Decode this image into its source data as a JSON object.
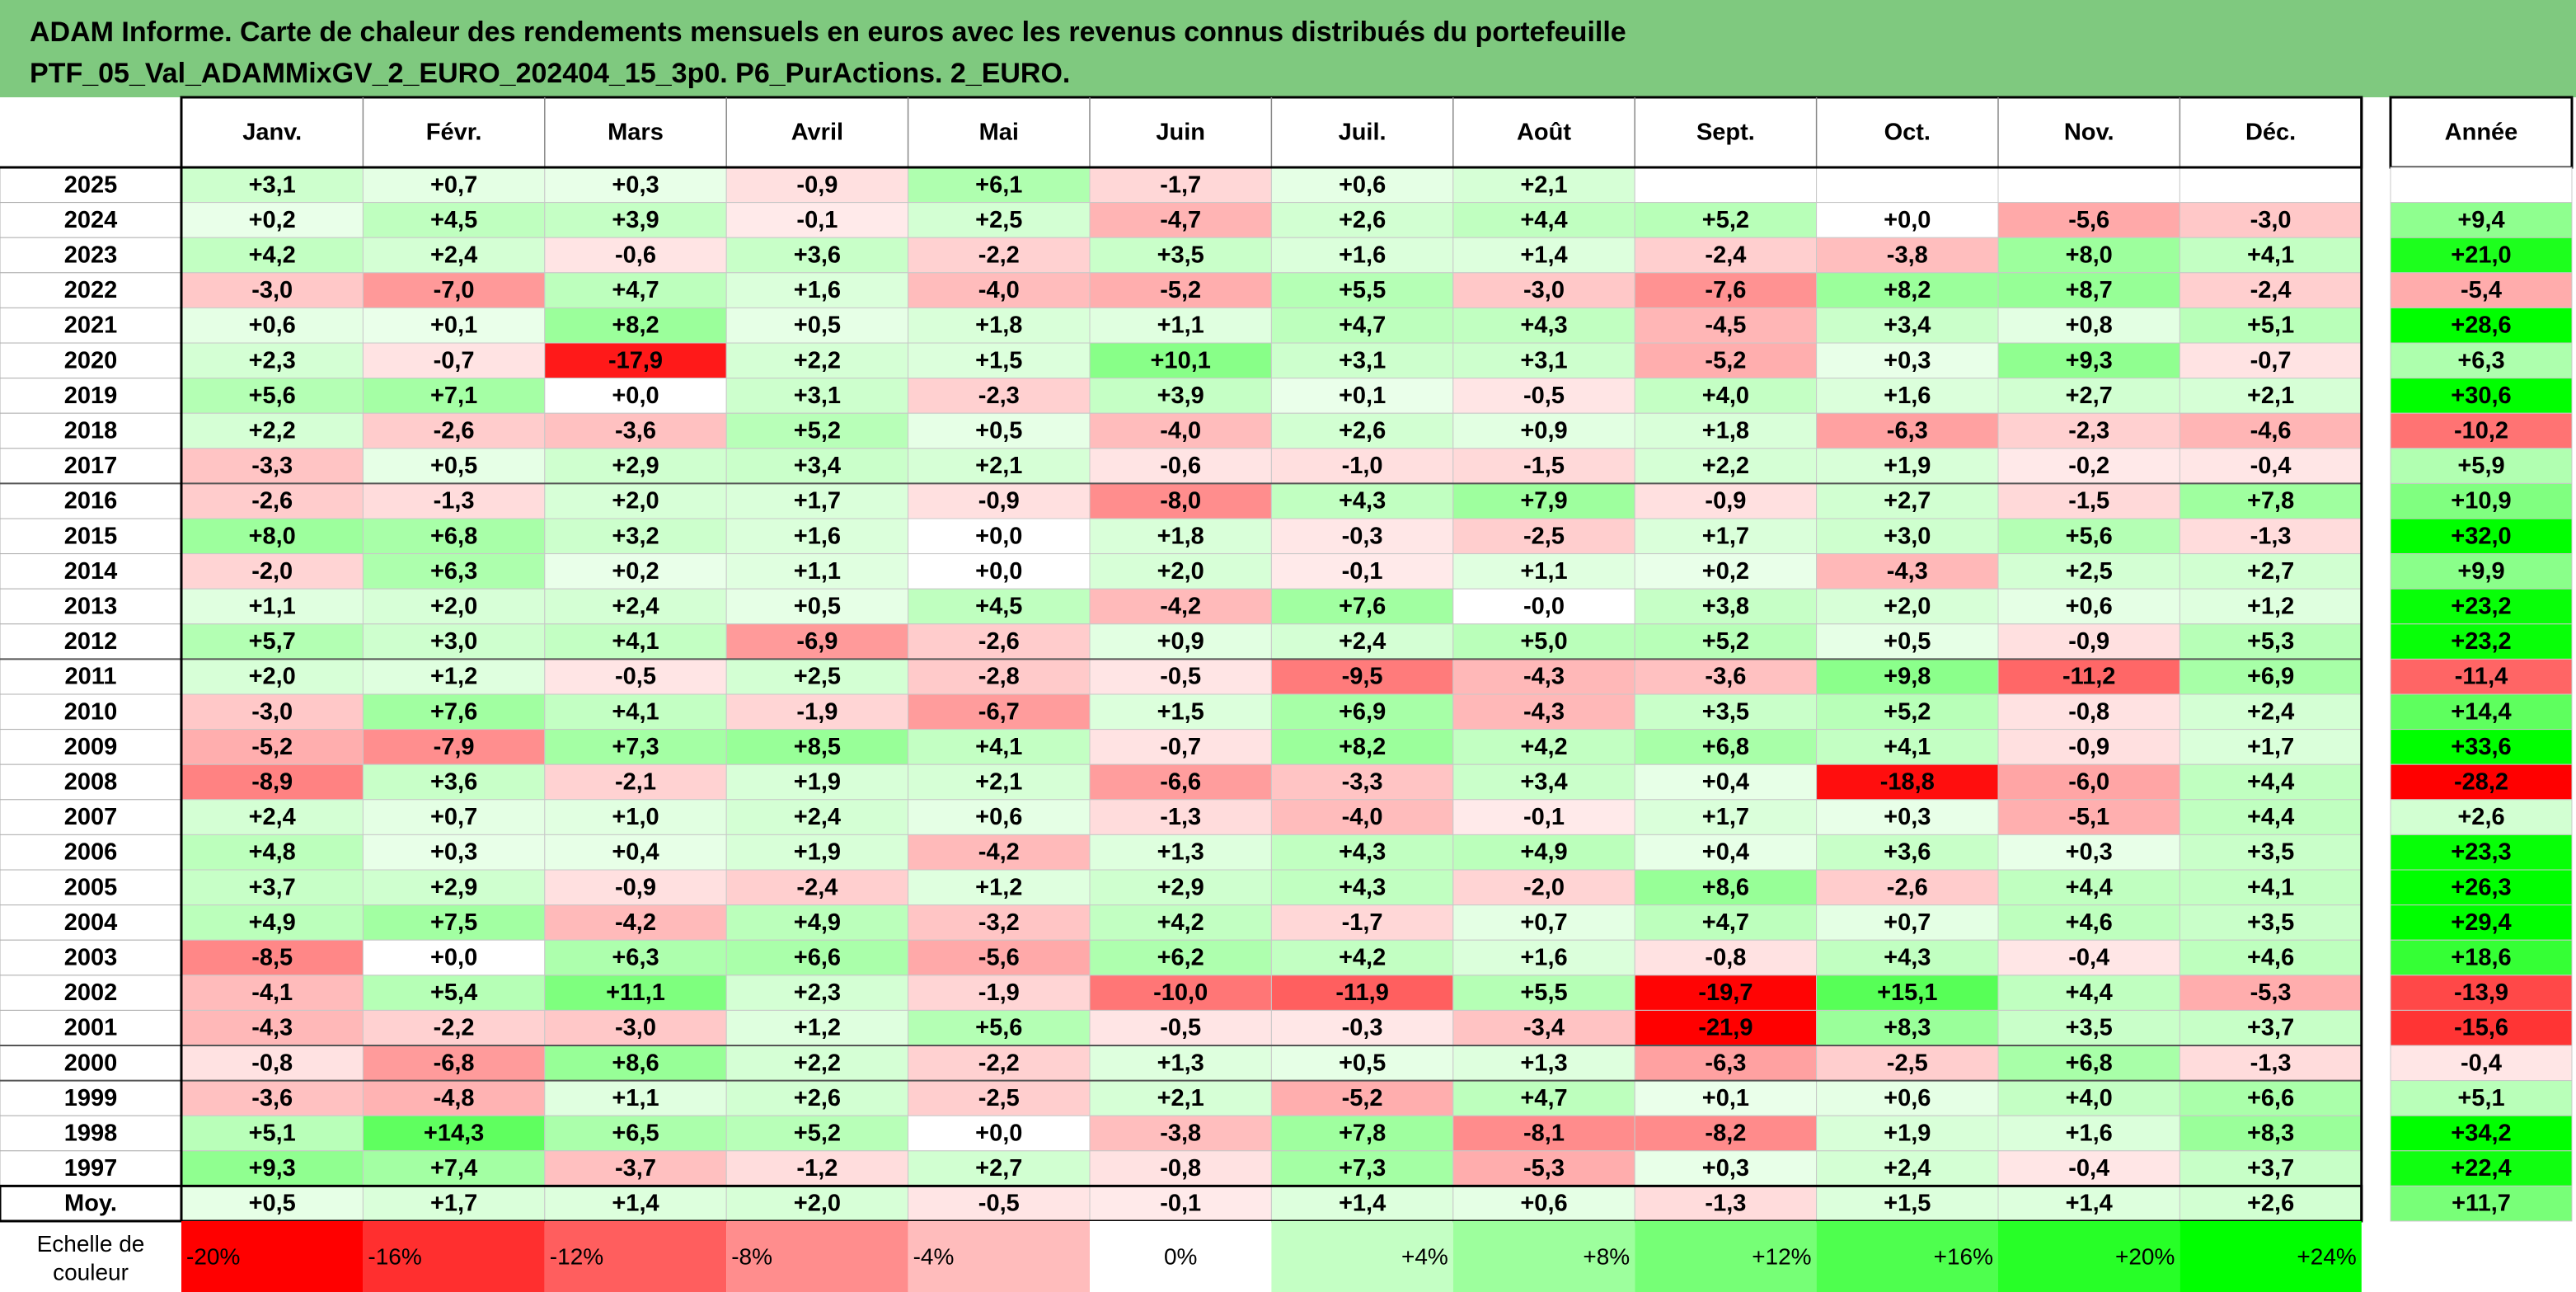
{
  "title_lines": [
    "ADAM Informe. Carte de chaleur des rendements mensuels en euros avec les revenus connus distribués du portefeuille",
    "PTF_05_Val_ADAMMixGV_2_EURO_202404_15_3p0. P6_PurActions. 2_EURO."
  ],
  "chart_data": {
    "type": "heatmap",
    "months": [
      "Janv.",
      "Févr.",
      "Mars",
      "Avril",
      "Mai",
      "Juin",
      "Juil.",
      "Août",
      "Sept.",
      "Oct.",
      "Nov.",
      "Déc."
    ],
    "year_column_label": "Année",
    "rows": [
      {
        "year": "2025",
        "values": [
          3.1,
          0.7,
          0.3,
          -0.9,
          6.1,
          -1.7,
          0.6,
          2.1,
          null,
          null,
          null,
          null
        ],
        "annual": null
      },
      {
        "year": "2024",
        "values": [
          0.2,
          4.5,
          3.9,
          -0.1,
          2.5,
          -4.7,
          2.6,
          4.4,
          5.2,
          0.0,
          -5.6,
          -3.0
        ],
        "annual": 9.4
      },
      {
        "year": "2023",
        "values": [
          4.2,
          2.4,
          -0.6,
          3.6,
          -2.2,
          3.5,
          1.6,
          1.4,
          -2.4,
          -3.8,
          8.0,
          4.1
        ],
        "annual": 21.0
      },
      {
        "year": "2022",
        "values": [
          -3.0,
          -7.0,
          4.7,
          1.6,
          -4.0,
          -5.2,
          5.5,
          -3.0,
          -7.6,
          8.2,
          8.7,
          -2.4
        ],
        "annual": -5.4
      },
      {
        "year": "2021",
        "values": [
          0.6,
          0.1,
          8.2,
          0.5,
          1.8,
          1.1,
          4.7,
          4.3,
          -4.5,
          3.4,
          0.8,
          5.1
        ],
        "annual": 28.6
      },
      {
        "year": "2020",
        "values": [
          2.3,
          -0.7,
          -17.9,
          2.2,
          1.5,
          10.1,
          3.1,
          3.1,
          -5.2,
          0.3,
          9.3,
          -0.7
        ],
        "annual": 6.3
      },
      {
        "year": "2019",
        "values": [
          5.6,
          7.1,
          0.0,
          3.1,
          -2.3,
          3.9,
          0.1,
          -0.5,
          4.0,
          1.6,
          2.7,
          2.1
        ],
        "annual": 30.6
      },
      {
        "year": "2018",
        "values": [
          2.2,
          -2.6,
          -3.6,
          5.2,
          0.5,
          -4.0,
          2.6,
          0.9,
          1.8,
          -6.3,
          -2.3,
          -4.6
        ],
        "annual": -10.2
      },
      {
        "year": "2017",
        "values": [
          -3.3,
          0.5,
          2.9,
          3.4,
          2.1,
          -0.6,
          -1.0,
          -1.5,
          2.2,
          1.9,
          -0.2,
          -0.4
        ],
        "annual": 5.9
      },
      {
        "year": "2016",
        "values": [
          -2.6,
          -1.3,
          2.0,
          1.7,
          -0.9,
          -8.0,
          4.3,
          7.9,
          -0.9,
          2.7,
          -1.5,
          7.8
        ],
        "annual": 10.9
      },
      {
        "year": "2015",
        "values": [
          8.0,
          6.8,
          3.2,
          1.6,
          0.0,
          1.8,
          -0.3,
          -2.5,
          1.7,
          3.0,
          5.6,
          -1.3
        ],
        "annual": 32.0
      },
      {
        "year": "2014",
        "values": [
          -2.0,
          6.3,
          0.2,
          1.1,
          0.0,
          2.0,
          -0.1,
          1.1,
          0.2,
          -4.3,
          2.5,
          2.7
        ],
        "annual": 9.9
      },
      {
        "year": "2013",
        "values": [
          1.1,
          2.0,
          2.4,
          0.5,
          4.5,
          -4.2,
          7.6,
          -0.0,
          3.8,
          2.0,
          0.6,
          1.2
        ],
        "annual": 23.2
      },
      {
        "year": "2012",
        "values": [
          5.7,
          3.0,
          4.1,
          -6.9,
          -2.6,
          0.9,
          2.4,
          5.0,
          5.2,
          0.5,
          -0.9,
          5.3
        ],
        "annual": 23.2
      },
      {
        "year": "2011",
        "values": [
          2.0,
          1.2,
          -0.5,
          2.5,
          -2.8,
          -0.5,
          -9.5,
          -4.3,
          -3.6,
          9.8,
          -11.2,
          6.9
        ],
        "annual": -11.4
      },
      {
        "year": "2010",
        "values": [
          -3.0,
          7.6,
          4.1,
          -1.9,
          -6.7,
          1.5,
          6.9,
          -4.3,
          3.5,
          5.2,
          -0.8,
          2.4
        ],
        "annual": 14.4
      },
      {
        "year": "2009",
        "values": [
          -5.2,
          -7.9,
          7.3,
          8.5,
          4.1,
          -0.7,
          8.2,
          4.2,
          6.8,
          4.1,
          -0.9,
          1.7
        ],
        "annual": 33.6
      },
      {
        "year": "2008",
        "values": [
          -8.9,
          3.6,
          -2.1,
          1.9,
          2.1,
          -6.6,
          -3.3,
          3.4,
          0.4,
          -18.8,
          -6.0,
          4.4
        ],
        "annual": -28.2
      },
      {
        "year": "2007",
        "values": [
          2.4,
          0.7,
          1.0,
          2.4,
          0.6,
          -1.3,
          -4.0,
          -0.1,
          1.7,
          0.3,
          -5.1,
          4.4
        ],
        "annual": 2.6
      },
      {
        "year": "2006",
        "values": [
          4.8,
          0.3,
          0.4,
          1.9,
          -4.2,
          1.3,
          4.3,
          4.9,
          0.4,
          3.6,
          0.3,
          3.5
        ],
        "annual": 23.3
      },
      {
        "year": "2005",
        "values": [
          3.7,
          2.9,
          -0.9,
          -2.4,
          1.2,
          2.9,
          4.3,
          -2.0,
          8.6,
          -2.6,
          4.4,
          4.1
        ],
        "annual": 26.3
      },
      {
        "year": "2004",
        "values": [
          4.9,
          7.5,
          -4.2,
          4.9,
          -3.2,
          4.2,
          -1.7,
          0.7,
          4.7,
          0.7,
          4.6,
          3.5
        ],
        "annual": 29.4
      },
      {
        "year": "2003",
        "values": [
          -8.5,
          0.0,
          6.3,
          6.6,
          -5.6,
          6.2,
          4.2,
          1.6,
          -0.8,
          4.3,
          -0.4,
          4.6
        ],
        "annual": 18.6
      },
      {
        "year": "2002",
        "values": [
          -4.1,
          5.4,
          11.1,
          2.3,
          -1.9,
          -10.0,
          -11.9,
          5.5,
          -19.7,
          15.1,
          4.4,
          -5.3
        ],
        "annual": -13.9
      },
      {
        "year": "2001",
        "values": [
          -4.3,
          -2.2,
          -3.0,
          1.2,
          5.6,
          -0.5,
          -0.3,
          -3.4,
          -21.9,
          8.3,
          3.5,
          3.7
        ],
        "annual": -15.6
      },
      {
        "year": "2000",
        "values": [
          -0.8,
          -6.8,
          8.6,
          2.2,
          -2.2,
          1.3,
          0.5,
          1.3,
          -6.3,
          -2.5,
          6.8,
          -1.3
        ],
        "annual": -0.4
      },
      {
        "year": "1999",
        "values": [
          -3.6,
          -4.8,
          1.1,
          2.6,
          -2.5,
          2.1,
          -5.2,
          4.7,
          0.1,
          0.6,
          4.0,
          6.6
        ],
        "annual": 5.1
      },
      {
        "year": "1998",
        "values": [
          5.1,
          14.3,
          6.5,
          5.2,
          0.0,
          -3.8,
          7.8,
          -8.1,
          -8.2,
          1.9,
          1.6,
          8.3
        ],
        "annual": 34.2
      },
      {
        "year": "1997",
        "values": [
          9.3,
          7.4,
          -3.7,
          -1.2,
          2.7,
          -0.8,
          7.3,
          -5.3,
          0.3,
          2.4,
          -0.4,
          3.7
        ],
        "annual": 22.4
      }
    ],
    "average_row": {
      "label": "Moy.",
      "values": [
        0.5,
        1.7,
        1.4,
        2.0,
        -0.5,
        -0.1,
        1.4,
        0.6,
        -1.3,
        1.5,
        1.4,
        2.6
      ],
      "annual": 11.7
    },
    "color_scale": {
      "label_lines": [
        "Echelle de",
        "couleur"
      ],
      "steps": [
        {
          "label": "-20%",
          "value": -20
        },
        {
          "label": "-16%",
          "value": -16
        },
        {
          "label": "-12%",
          "value": -12
        },
        {
          "label": "-8%",
          "value": -8
        },
        {
          "label": "-4%",
          "value": -4
        },
        {
          "label": "0%",
          "value": 0
        },
        {
          "label": "+4%",
          "value": 4
        },
        {
          "label": "+8%",
          "value": 8
        },
        {
          "label": "+12%",
          "value": 12
        },
        {
          "label": "+16%",
          "value": 16
        },
        {
          "label": "+20%",
          "value": 20
        },
        {
          "label": "+24%",
          "value": 24
        }
      ]
    },
    "colors": {
      "negative": "#ff0000",
      "zero": "#ffffff",
      "positive": "#00ff00",
      "header_band": "#7fc97f"
    }
  }
}
